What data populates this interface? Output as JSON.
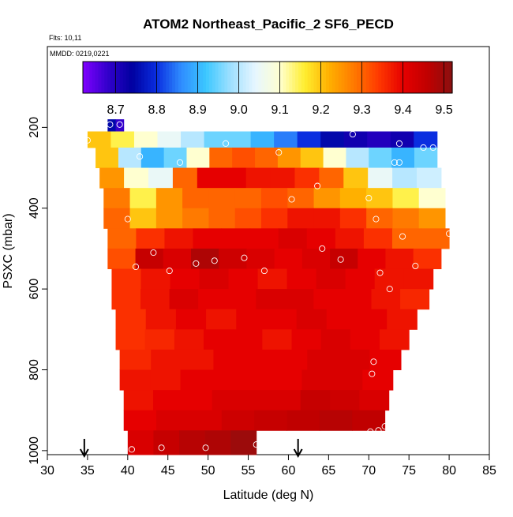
{
  "chart_data": {
    "type": "heatmap",
    "title": "ATOM2 Northeast_Pacific_2 SF6_PECD",
    "annotations": [
      "Flts: 10,11",
      "MMDD: 0219,0221"
    ],
    "xlabel": "Latitude (deg N)",
    "ylabel": "PSXC (mbar)",
    "xlim": [
      30,
      85
    ],
    "ylim": [
      1010,
      0
    ],
    "x_ticks": [
      "30",
      "35",
      "40",
      "45",
      "50",
      "55",
      "60",
      "65",
      "70",
      "75",
      "80",
      "85"
    ],
    "y_ticks": [
      "200",
      "400",
      "600",
      "800",
      "1000"
    ],
    "y_axis_reversed": true,
    "colorbar": {
      "range": [
        8.62,
        9.52
      ],
      "tick_labels": [
        "8.7",
        "8.8",
        "8.9",
        "9.0",
        "9.1",
        "9.2",
        "9.3",
        "9.4",
        "9.5"
      ],
      "colors": [
        "#8000ff",
        "#3300cc",
        "#0000a0",
        "#0a2ee0",
        "#2f8dff",
        "#3cc8ff",
        "#9fe0ff",
        "#e6f6ff",
        "#ffffd0",
        "#ffee30",
        "#ffb000",
        "#ff7a00",
        "#ff3a00",
        "#e60000",
        "#c00000",
        "#8a1010"
      ]
    },
    "arrows_latitude": [
      34.6,
      61.2
    ],
    "layers": [
      {
        "p_top": 180,
        "p_bot": 210,
        "lat_start": 37.5,
        "lat_end": 39.5,
        "values": [
          8.75,
          8.68
        ]
      },
      {
        "p_top": 210,
        "p_bot": 250,
        "lat_start": 35.0,
        "lat_end": 78.5,
        "values": [
          9.2,
          9.15,
          9.1,
          9.05,
          9.0,
          8.95,
          8.95,
          8.9,
          8.85,
          8.8,
          8.75,
          8.72,
          8.7,
          8.72,
          8.8
        ]
      },
      {
        "p_top": 250,
        "p_bot": 300,
        "lat_start": 36.0,
        "lat_end": 78.5,
        "values": [
          9.2,
          9.0,
          8.9,
          8.95,
          9.1,
          9.3,
          9.32,
          9.3,
          9.25,
          9.2,
          9.1,
          9.0,
          8.95,
          8.9,
          8.95
        ]
      },
      {
        "p_top": 300,
        "p_bot": 350,
        "lat_start": 36.5,
        "lat_end": 79.0,
        "values": [
          9.25,
          9.1,
          9.05,
          9.3,
          9.4,
          9.4,
          9.38,
          9.38,
          9.35,
          9.3,
          9.2,
          9.05,
          9.0,
          9.02
        ]
      },
      {
        "p_top": 350,
        "p_bot": 400,
        "lat_start": 37.0,
        "lat_end": 79.5,
        "values": [
          9.28,
          9.15,
          9.25,
          9.3,
          9.3,
          9.3,
          9.32,
          9.3,
          9.25,
          9.22,
          9.2,
          9.15,
          9.1
        ]
      },
      {
        "p_top": 400,
        "p_bot": 450,
        "lat_start": 37.0,
        "lat_end": 79.5,
        "values": [
          9.3,
          9.2,
          9.25,
          9.28,
          9.3,
          9.32,
          9.35,
          9.38,
          9.38,
          9.35,
          9.3,
          9.28,
          9.25
        ]
      },
      {
        "p_top": 450,
        "p_bot": 500,
        "lat_start": 37.5,
        "lat_end": 80.0,
        "values": [
          9.3,
          9.35,
          9.38,
          9.4,
          9.4,
          9.4,
          9.42,
          9.4,
          9.38,
          9.35,
          9.3,
          9.3
        ]
      },
      {
        "p_top": 500,
        "p_bot": 550,
        "lat_start": 37.5,
        "lat_end": 79.0,
        "values": [
          9.32,
          9.45,
          9.42,
          9.48,
          9.44,
          9.42,
          9.4,
          9.42,
          9.45,
          9.4,
          9.38,
          9.35
        ]
      },
      {
        "p_top": 550,
        "p_bot": 600,
        "lat_start": 38.0,
        "lat_end": 78.0,
        "values": [
          9.35,
          9.38,
          9.4,
          9.42,
          9.4,
          9.38,
          9.4,
          9.42,
          9.4,
          9.38,
          9.38
        ]
      },
      {
        "p_top": 600,
        "p_bot": 650,
        "lat_start": 38.0,
        "lat_end": 77.5,
        "values": [
          9.35,
          9.38,
          9.42,
          9.4,
          9.4,
          9.42,
          9.42,
          9.4,
          9.4,
          9.38,
          9.36
        ]
      },
      {
        "p_top": 650,
        "p_bot": 700,
        "lat_start": 38.5,
        "lat_end": 76.0,
        "values": [
          9.35,
          9.38,
          9.4,
          9.38,
          9.4,
          9.4,
          9.42,
          9.4,
          9.4,
          9.38
        ]
      },
      {
        "p_top": 700,
        "p_bot": 750,
        "lat_start": 38.5,
        "lat_end": 75.0,
        "values": [
          9.35,
          9.36,
          9.38,
          9.4,
          9.4,
          9.38,
          9.4,
          9.42,
          9.4,
          9.38
        ]
      },
      {
        "p_top": 750,
        "p_bot": 800,
        "lat_start": 39.0,
        "lat_end": 74.0,
        "values": [
          9.36,
          9.38,
          9.38,
          9.4,
          9.4,
          9.4,
          9.42,
          9.42,
          9.4
        ]
      },
      {
        "p_top": 800,
        "p_bot": 850,
        "lat_start": 39.0,
        "lat_end": 73.0,
        "values": [
          9.38,
          9.38,
          9.4,
          9.4,
          9.4,
          9.4,
          9.42,
          9.42,
          9.4
        ]
      },
      {
        "p_top": 850,
        "p_bot": 900,
        "lat_start": 39.5,
        "lat_end": 72.5,
        "values": [
          9.38,
          9.4,
          9.4,
          9.42,
          9.42,
          9.42,
          9.45,
          9.44,
          9.42
        ]
      },
      {
        "p_top": 900,
        "p_bot": 950,
        "lat_start": 39.5,
        "lat_end": 72.0,
        "values": [
          9.4,
          9.42,
          9.42,
          9.44,
          9.45,
          9.46,
          9.47,
          9.46
        ]
      },
      {
        "p_top": 950,
        "p_bot": 1010,
        "lat_start": 40.0,
        "lat_end": 56.0,
        "values": [
          9.42,
          9.45,
          9.47,
          9.48,
          9.5
        ]
      }
    ],
    "observation_points": [
      {
        "lat": 35.0,
        "p": 232
      },
      {
        "lat": 37.8,
        "p": 193
      },
      {
        "lat": 39.0,
        "p": 193
      },
      {
        "lat": 41.5,
        "p": 272
      },
      {
        "lat": 46.5,
        "p": 287
      },
      {
        "lat": 52.2,
        "p": 240
      },
      {
        "lat": 58.8,
        "p": 262
      },
      {
        "lat": 68.0,
        "p": 217
      },
      {
        "lat": 73.8,
        "p": 240
      },
      {
        "lat": 76.8,
        "p": 250
      },
      {
        "lat": 78.0,
        "p": 250
      },
      {
        "lat": 73.2,
        "p": 287
      },
      {
        "lat": 73.8,
        "p": 287
      },
      {
        "lat": 63.6,
        "p": 345
      },
      {
        "lat": 60.4,
        "p": 378
      },
      {
        "lat": 70.0,
        "p": 375
      },
      {
        "lat": 70.9,
        "p": 427
      },
      {
        "lat": 40.0,
        "p": 427
      },
      {
        "lat": 43.2,
        "p": 510
      },
      {
        "lat": 74.2,
        "p": 470
      },
      {
        "lat": 80.0,
        "p": 463
      },
      {
        "lat": 64.2,
        "p": 500
      },
      {
        "lat": 66.5,
        "p": 527
      },
      {
        "lat": 41.0,
        "p": 545
      },
      {
        "lat": 45.2,
        "p": 555
      },
      {
        "lat": 48.5,
        "p": 537
      },
      {
        "lat": 50.8,
        "p": 530
      },
      {
        "lat": 54.5,
        "p": 523
      },
      {
        "lat": 57.0,
        "p": 555
      },
      {
        "lat": 71.4,
        "p": 560
      },
      {
        "lat": 75.8,
        "p": 543
      },
      {
        "lat": 72.6,
        "p": 600
      },
      {
        "lat": 70.6,
        "p": 780
      },
      {
        "lat": 70.4,
        "p": 810
      },
      {
        "lat": 72.0,
        "p": 940
      },
      {
        "lat": 71.2,
        "p": 950
      },
      {
        "lat": 70.2,
        "p": 953
      },
      {
        "lat": 40.5,
        "p": 997
      },
      {
        "lat": 44.2,
        "p": 993
      },
      {
        "lat": 49.7,
        "p": 993
      },
      {
        "lat": 56.0,
        "p": 985
      }
    ]
  }
}
